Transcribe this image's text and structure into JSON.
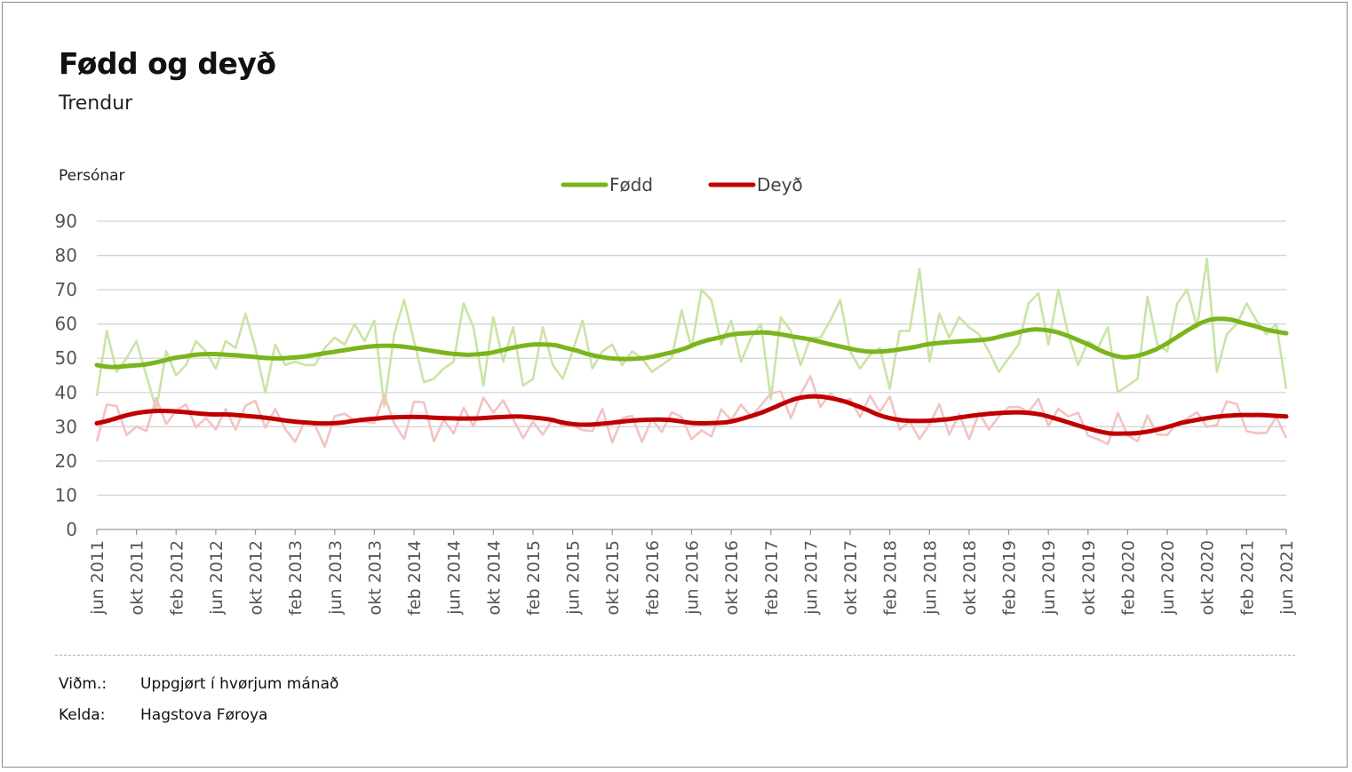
{
  "chart_data": {
    "type": "line",
    "title": "Fødd og deyð",
    "subtitle": "Trendur",
    "ylabel": "Persónar",
    "ylim": [
      0,
      90
    ],
    "yticks": [
      0,
      10,
      20,
      30,
      40,
      50,
      60,
      70,
      80,
      90
    ],
    "grid": true,
    "legend": "top-center",
    "x_start": "2011-06",
    "x_tick_labels": [
      "jun 2011",
      "okt 2011",
      "feb 2012",
      "jun 2012",
      "okt 2012",
      "feb 2013",
      "jun 2013",
      "okt 2013",
      "feb 2014",
      "jun 2014",
      "okt 2014",
      "feb 2015",
      "jun 2015",
      "okt 2015",
      "feb 2016",
      "jun 2016",
      "okt 2016",
      "feb 2017",
      "jun 2017",
      "okt 2017",
      "feb 2018",
      "jun 2018",
      "okt 2018",
      "feb 2019",
      "jun 2019",
      "okt 2019",
      "feb 2020",
      "jun 2020",
      "okt 2020",
      "feb 2021",
      "jun 2021"
    ],
    "series": [
      {
        "name": "Fødd",
        "color": "#7ab51d",
        "raw_color": "#c9e4a6",
        "trend": [
          48,
          47.5,
          47.5,
          47.8,
          48,
          48.5,
          49.2,
          50,
          50.5,
          51,
          51.2,
          51.2,
          51,
          50.8,
          50.5,
          50.2,
          50,
          50,
          50.2,
          50.5,
          51,
          51.5,
          52,
          52.5,
          53,
          53.4,
          53.6,
          53.6,
          53.4,
          53,
          52.5,
          52,
          51.5,
          51.2,
          51,
          51.2,
          51.5,
          52.2,
          53,
          53.6,
          54,
          54,
          53.8,
          53,
          52.2,
          51.2,
          50.5,
          50,
          49.8,
          49.8,
          50,
          50.5,
          51.2,
          52,
          53,
          54.3,
          55.3,
          56,
          56.8,
          57.2,
          57.4,
          57.5,
          57.3,
          56.8,
          56.2,
          55.7,
          55,
          54.2,
          53.5,
          52.8,
          52.2,
          51.9,
          52,
          52.3,
          52.8,
          53.3,
          54,
          54.4,
          54.7,
          54.9,
          55.1,
          55.3,
          55.7,
          56.5,
          57.2,
          58,
          58.4,
          58.2,
          57.6,
          56.5,
          55.2,
          53.8,
          52.2,
          51,
          50.3,
          50.5,
          51.3,
          52.5,
          54.2,
          56.2,
          58.2,
          60,
          61.2,
          61.5,
          61.2,
          60.3,
          59.5,
          58.5,
          57.8,
          57.3
        ],
        "raw": [
          39,
          58,
          46,
          50,
          55,
          45,
          35,
          52,
          45,
          48,
          55,
          52,
          47,
          55,
          53,
          63,
          53,
          40,
          54,
          48,
          49,
          48,
          48,
          53,
          56,
          54,
          60,
          55,
          61,
          36,
          57,
          67,
          55,
          43,
          44,
          47,
          49,
          66,
          59,
          42,
          62,
          49,
          59,
          42,
          44,
          59,
          48,
          44,
          52,
          61,
          47,
          52,
          54,
          48,
          52,
          50,
          46,
          48,
          50,
          64,
          53,
          70,
          67,
          54,
          61,
          49,
          56,
          60,
          38,
          62,
          58,
          48,
          56,
          56,
          61,
          67,
          52,
          47,
          51,
          53,
          41,
          58,
          58,
          76,
          49,
          63,
          56,
          62,
          59,
          57,
          52,
          46,
          50,
          54,
          66,
          69,
          54,
          70,
          57,
          48,
          55,
          53,
          59,
          40,
          42,
          44,
          68,
          54,
          52,
          66,
          70,
          59,
          79,
          46,
          57,
          60,
          66,
          61,
          57,
          60,
          41
        ]
      },
      {
        "name": "Deyð",
        "color": "#c00000",
        "raw_color": "#f3c3c3",
        "trend": [
          31,
          31.8,
          32.8,
          33.7,
          34.3,
          34.6,
          34.6,
          34.4,
          34.1,
          33.8,
          33.6,
          33.6,
          33.4,
          33.1,
          32.8,
          32.4,
          31.9,
          31.5,
          31.2,
          31,
          31,
          31.2,
          31.7,
          32.1,
          32.4,
          32.7,
          32.8,
          32.9,
          32.8,
          32.6,
          32.5,
          32.4,
          32.4,
          32.5,
          32.7,
          32.9,
          33,
          32.8,
          32.5,
          32,
          31.2,
          30.7,
          30.6,
          30.8,
          31.1,
          31.5,
          31.8,
          32,
          32.1,
          32,
          31.6,
          31.1,
          31,
          31.1,
          31.3,
          32,
          33,
          34.1,
          35.5,
          37,
          38.2,
          38.8,
          38.8,
          38.3,
          37.5,
          36.3,
          35,
          33.5,
          32.5,
          31.9,
          31.7,
          31.7,
          31.9,
          32.2,
          32.7,
          33.2,
          33.6,
          33.9,
          34.1,
          34.2,
          34,
          33.5,
          32.6,
          31.6,
          30.5,
          29.5,
          28.6,
          28,
          28,
          28.1,
          28.5,
          29.2,
          30.1,
          31.1,
          31.8,
          32.4,
          32.9,
          33.2,
          33.4,
          33.4,
          33.4,
          33.2,
          33
        ]
      }
    ]
  },
  "legend": {
    "fodd": "Fødd",
    "deyd": "Deyð"
  },
  "footer": {
    "note_key": "Viðm.:",
    "note_value": "Uppgjørt í hvørjum mánað",
    "source_key": "Kelda:",
    "source_value": "Hagstova Føroya"
  }
}
